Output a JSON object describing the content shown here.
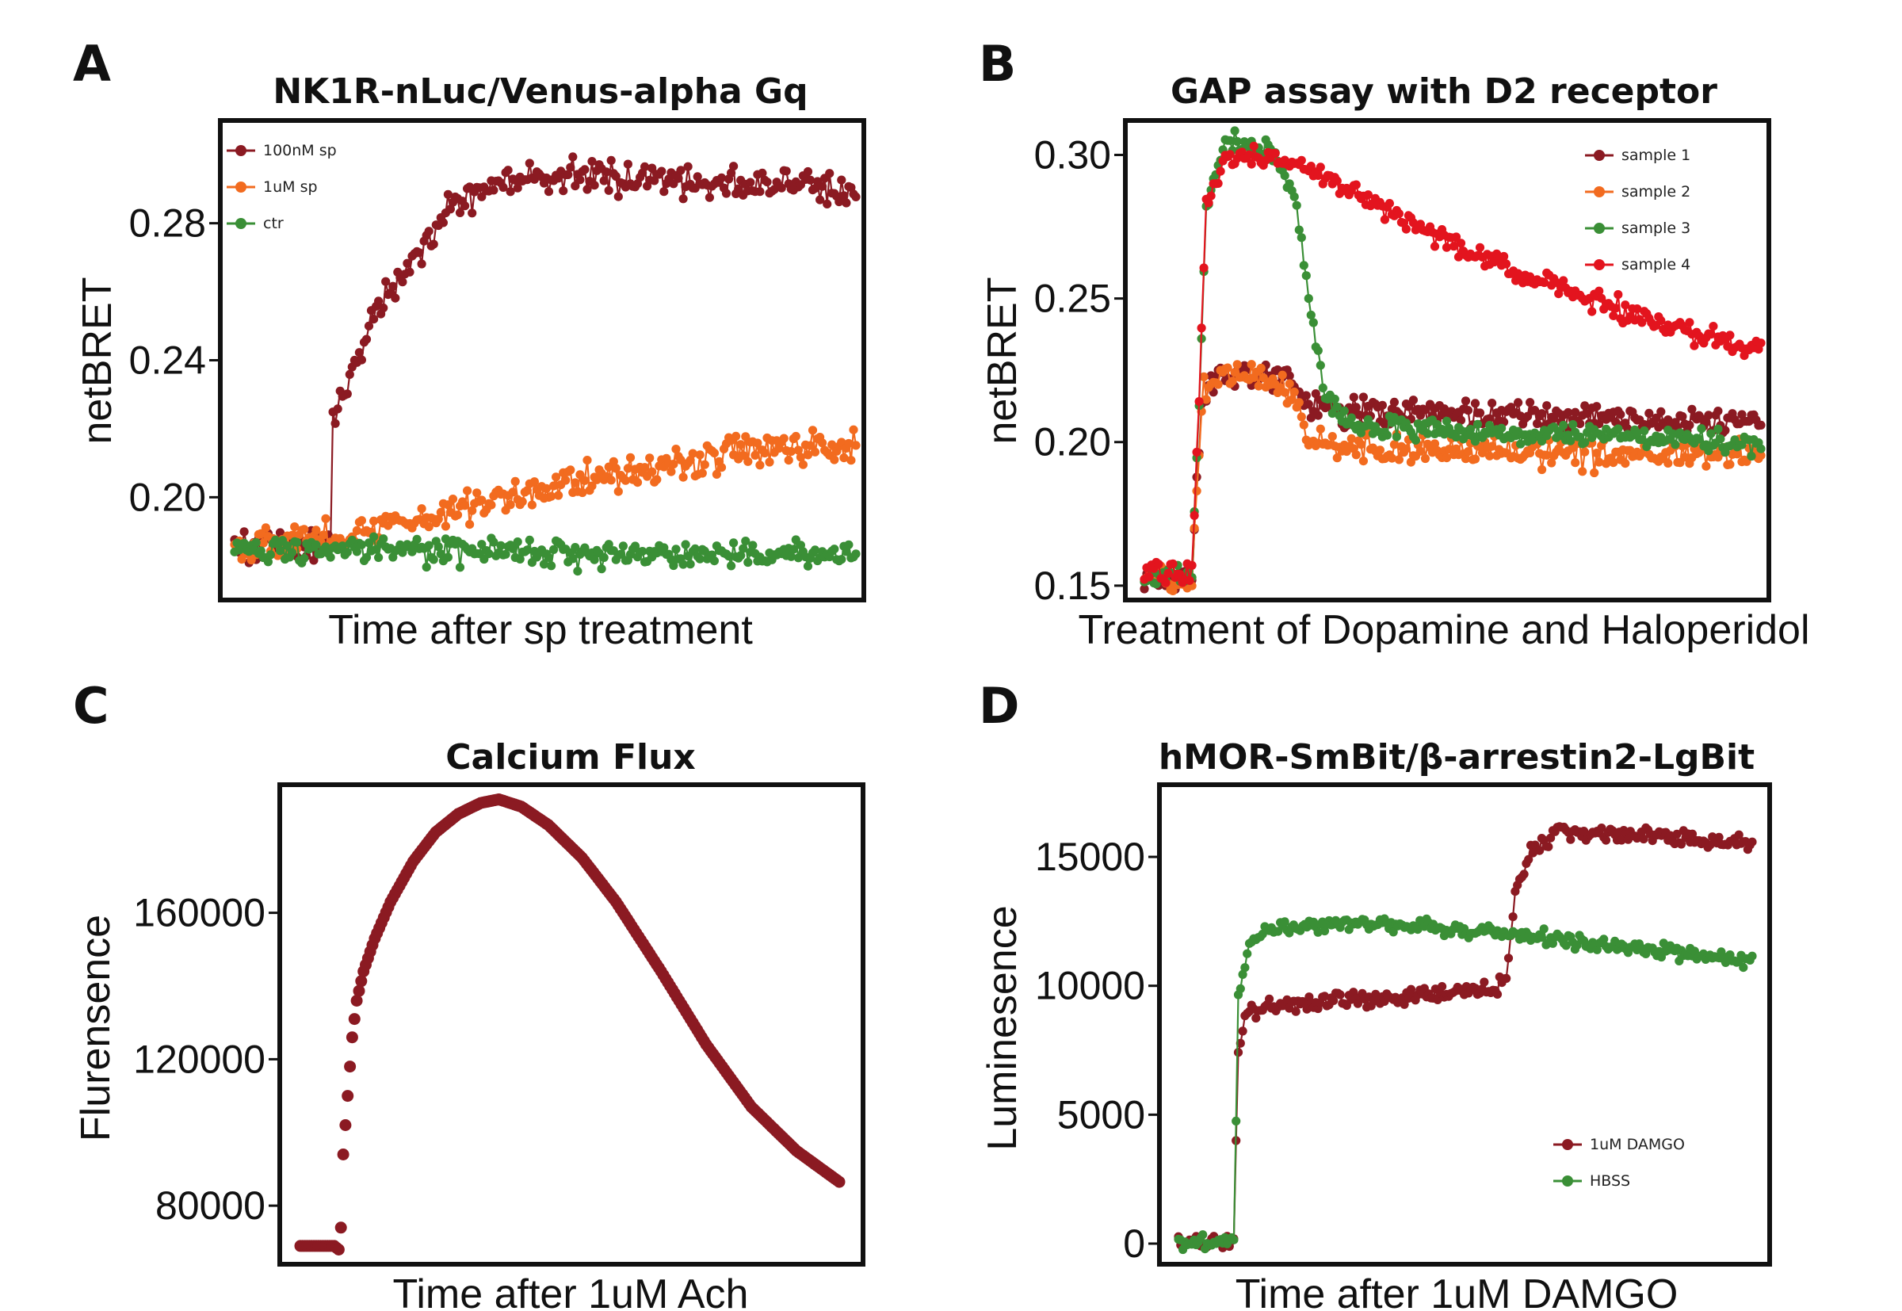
{
  "colors": {
    "dark_red": "#8B1A22",
    "orange": "#F26B1F",
    "green": "#3A8F36",
    "red": "#E3141E"
  },
  "chart_data": [
    {
      "panel": "A",
      "type": "scatter",
      "title": "NK1R-nLuc/Venus-alpha Gq",
      "xlabel": "Time after sp treatment",
      "ylabel": "netBRET",
      "ylim": [
        0.17,
        0.31
      ],
      "yticks": [
        0.2,
        0.24,
        0.28
      ],
      "ytick_labels": [
        "0.20",
        "0.24",
        "0.28"
      ],
      "grid": false,
      "legend_position": "top-left",
      "x": {
        "n": 260
      },
      "series": [
        {
          "name": "100nM sp",
          "color": "#8B1A22",
          "points": [
            [
              0,
              0.186
            ],
            [
              40,
              0.186
            ],
            [
              41,
              0.222
            ],
            [
              50,
              0.24
            ],
            [
              60,
              0.255
            ],
            [
              70,
              0.266
            ],
            [
              80,
              0.276
            ],
            [
              92,
              0.285
            ],
            [
              110,
              0.292
            ],
            [
              140,
              0.294
            ],
            [
              200,
              0.292
            ],
            [
              259,
              0.29
            ]
          ],
          "noise": 0.0045
        },
        {
          "name": "1uM sp",
          "color": "#F26B1F",
          "points": [
            [
              0,
              0.186
            ],
            [
              50,
              0.189
            ],
            [
              100,
              0.198
            ],
            [
              150,
              0.206
            ],
            [
              200,
              0.212
            ],
            [
              259,
              0.216
            ]
          ],
          "noise": 0.0045
        },
        {
          "name": "ctr",
          "color": "#3A8F36",
          "points": [
            [
              0,
              0.185
            ],
            [
              100,
              0.184
            ],
            [
              259,
              0.183
            ]
          ],
          "noise": 0.0035
        }
      ]
    },
    {
      "panel": "B",
      "type": "scatter",
      "title": "GAP assay with D2 receptor",
      "xlabel": "Treatment of Dopamine and Haloperidol",
      "ylabel": "netBRET",
      "ylim": [
        0.145,
        0.312
      ],
      "yticks": [
        0.15,
        0.2,
        0.25,
        0.3
      ],
      "ytick_labels": [
        "0.15",
        "0.20",
        "0.25",
        "0.30"
      ],
      "grid": false,
      "legend_position": "top-right",
      "x": {
        "n": 260
      },
      "series": [
        {
          "name": "sample 1",
          "color": "#8B1A22",
          "points": [
            [
              0,
              0.153
            ],
            [
              20,
              0.153
            ],
            [
              24,
              0.215
            ],
            [
              32,
              0.225
            ],
            [
              60,
              0.222
            ],
            [
              70,
              0.212
            ],
            [
              100,
              0.21
            ],
            [
              259,
              0.207
            ]
          ],
          "noise": 0.0045
        },
        {
          "name": "sample 2",
          "color": "#F26B1F",
          "points": [
            [
              0,
              0.153
            ],
            [
              20,
              0.153
            ],
            [
              24,
              0.215
            ],
            [
              32,
              0.225
            ],
            [
              60,
              0.22
            ],
            [
              70,
              0.2
            ],
            [
              100,
              0.197
            ],
            [
              259,
              0.195
            ]
          ],
          "noise": 0.0045
        },
        {
          "name": "sample 3",
          "color": "#3A8F36",
          "points": [
            [
              0,
              0.153
            ],
            [
              20,
              0.153
            ],
            [
              26,
              0.28
            ],
            [
              34,
              0.305
            ],
            [
              55,
              0.3
            ],
            [
              64,
              0.282
            ],
            [
              70,
              0.245
            ],
            [
              76,
              0.215
            ],
            [
              90,
              0.205
            ],
            [
              259,
              0.2
            ]
          ],
          "noise": 0.0035
        },
        {
          "name": "sample 4",
          "color": "#E3141E",
          "points": [
            [
              0,
              0.155
            ],
            [
              20,
              0.155
            ],
            [
              26,
              0.282
            ],
            [
              34,
              0.3
            ],
            [
              60,
              0.298
            ],
            [
              100,
              0.282
            ],
            [
              140,
              0.265
            ],
            [
              180,
              0.252
            ],
            [
              220,
              0.24
            ],
            [
              259,
              0.232
            ]
          ],
          "noise": 0.0035
        }
      ]
    },
    {
      "panel": "C",
      "type": "scatter",
      "title": "Calcium Flux",
      "xlabel": "Time after 1uM Ach",
      "ylabel": "Flurensence",
      "ylim": [
        64000,
        195000
      ],
      "yticks": [
        80000,
        120000,
        160000
      ],
      "ytick_labels": [
        "80000",
        "120000",
        "160000"
      ],
      "grid": false,
      "legend_position": "none",
      "x": {
        "n": 240
      },
      "series": [
        {
          "name": "",
          "color": "#8B1A22",
          "points": [
            [
              0,
              69000
            ],
            [
              15,
              69000
            ],
            [
              17,
              68000
            ],
            [
              18,
              74000
            ],
            [
              19,
              94000
            ],
            [
              21,
              110000
            ],
            [
              23,
              126000
            ],
            [
              25,
              136000
            ],
            [
              28,
              144000
            ],
            [
              33,
              153000
            ],
            [
              40,
              163000
            ],
            [
              50,
              174000
            ],
            [
              60,
              182000
            ],
            [
              70,
              187000
            ],
            [
              80,
              190000
            ],
            [
              88,
              191000
            ],
            [
              98,
              189000
            ],
            [
              110,
              184000
            ],
            [
              125,
              175000
            ],
            [
              140,
              163000
            ],
            [
              160,
              144000
            ],
            [
              180,
              124000
            ],
            [
              200,
              107000
            ],
            [
              220,
              95000
            ],
            [
              239,
              86500
            ]
          ],
          "noise": 0
        }
      ]
    },
    {
      "panel": "D",
      "type": "scatter",
      "title": "hMOR-SmBit/β-arrestin2-LgBit",
      "xlabel": "Time after 1uM DAMGO",
      "ylabel": "Luminesence",
      "ylim": [
        -800,
        17800
      ],
      "yticks": [
        0,
        5000,
        10000,
        15000
      ],
      "ytick_labels": [
        "0",
        "5000",
        "10000",
        "15000"
      ],
      "grid": false,
      "legend_position": "bottom-right",
      "x": {
        "n": 260
      },
      "series": [
        {
          "name": "1uM DAMGO",
          "color": "#8B1A22",
          "points": [
            [
              0,
              50
            ],
            [
              24,
              50
            ],
            [
              25,
              300
            ],
            [
              27,
              7500
            ],
            [
              30,
              8700
            ],
            [
              40,
              9200
            ],
            [
              100,
              9600
            ],
            [
              140,
              9900
            ],
            [
              148,
              10200
            ],
            [
              152,
              13500
            ],
            [
              158,
              15000
            ],
            [
              170,
              16000
            ],
            [
              200,
              15900
            ],
            [
              259,
              15500
            ]
          ],
          "noise": 280
        },
        {
          "name": "HBSS",
          "color": "#3A8F36",
          "points": [
            [
              0,
              50
            ],
            [
              24,
              50
            ],
            [
              25,
              300
            ],
            [
              27,
              9500
            ],
            [
              32,
              11500
            ],
            [
              40,
              12200
            ],
            [
              80,
              12500
            ],
            [
              140,
              12100
            ],
            [
              200,
              11500
            ],
            [
              259,
              11000
            ]
          ],
          "noise": 250
        }
      ]
    }
  ]
}
